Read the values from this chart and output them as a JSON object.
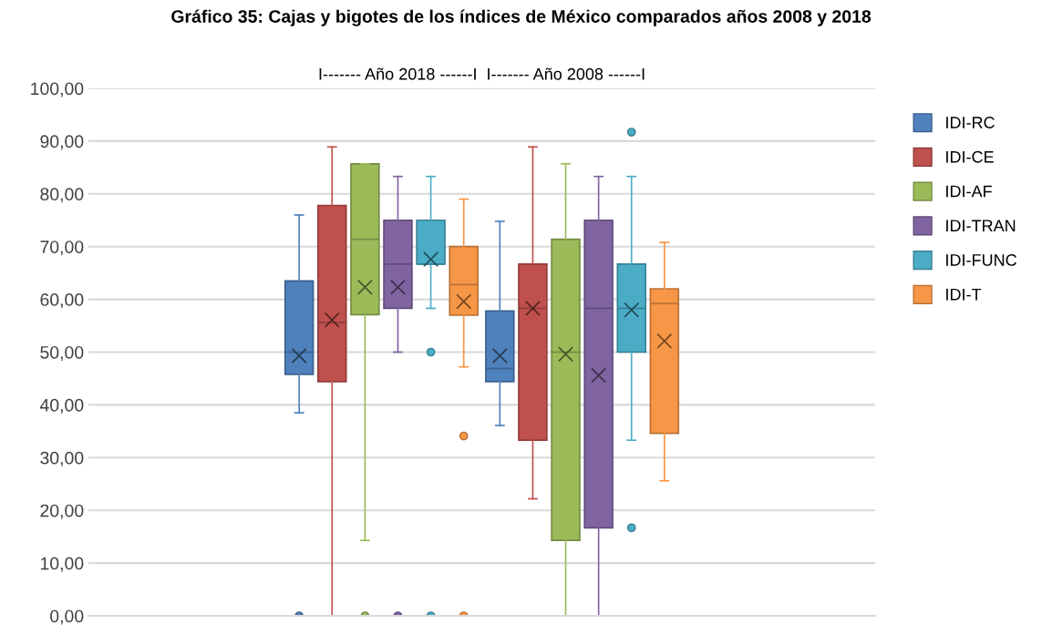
{
  "chart_data": {
    "type": "box",
    "title": "Gráfico 35: Cajas y bigotes de los índices de México comparados años 2008 y 2018",
    "annotations": [
      "I------- Año 2018 ------I  I------- Año 2008 ------I"
    ],
    "categories": [
      null,
      null
    ],
    "series": [
      {
        "name": "IDI-RC",
        "color": "#4f81bd",
        "boxes": [
          {
            "low": 38.5,
            "q1": 45.8,
            "median": 50.0,
            "q3": 63.5,
            "high": 76.0,
            "mean": 49.3,
            "outliers": [
              0
            ]
          },
          {
            "low": 36.1,
            "q1": 44.4,
            "median": 46.9,
            "q3": 57.8,
            "high": 74.8,
            "mean": 49.3
          }
        ]
      },
      {
        "name": "IDI-CE",
        "color": "#c0504d",
        "boxes": [
          {
            "low": 0,
            "q1": 44.4,
            "median": 55.6,
            "q3": 77.8,
            "high": 88.9,
            "mean": 56.1
          },
          {
            "low": 22.2,
            "q1": 33.3,
            "median": 58.3,
            "q3": 66.7,
            "high": 88.9,
            "mean": 58.3
          }
        ]
      },
      {
        "name": "IDI-AF",
        "color": "#9bbb59",
        "boxes": [
          {
            "low": 14.3,
            "q1": 57.1,
            "median": 71.4,
            "q3": 85.7,
            "high": 85.7,
            "mean": 62.3,
            "outliers": [
              0
            ]
          },
          {
            "low": 0,
            "q1": 14.3,
            "median": 50.0,
            "q3": 71.4,
            "high": 85.7,
            "mean": 49.6
          }
        ]
      },
      {
        "name": "IDI-TRAN",
        "color": "#8064a2",
        "boxes": [
          {
            "low": 50.0,
            "q1": 58.3,
            "median": 66.7,
            "q3": 75.0,
            "high": 83.3,
            "mean": 62.3,
            "outliers": [
              0
            ]
          },
          {
            "low": 0,
            "q1": 16.7,
            "median": 58.3,
            "q3": 75.0,
            "high": 83.3,
            "mean": 45.6
          }
        ]
      },
      {
        "name": "IDI-FUNC",
        "color": "#4bacc6",
        "boxes": [
          {
            "low": 58.3,
            "q1": 66.7,
            "median": 66.7,
            "q3": 75.0,
            "high": 83.3,
            "mean": 67.6,
            "outliers": [
              50.0,
              0
            ]
          },
          {
            "low": 33.3,
            "q1": 50.0,
            "median": 58.3,
            "q3": 66.7,
            "high": 83.3,
            "mean": 58.0,
            "outliers": [
              91.7,
              16.7
            ]
          }
        ]
      },
      {
        "name": "IDI-T",
        "color": "#f79646",
        "boxes": [
          {
            "low": 47.2,
            "q1": 57.0,
            "median": 62.8,
            "q3": 70.0,
            "high": 79.0,
            "mean": 59.6,
            "outliers": [
              34.1,
              0
            ]
          },
          {
            "low": 25.6,
            "q1": 34.6,
            "median": 59.2,
            "q3": 62.0,
            "high": 70.8,
            "mean": 52.1
          }
        ]
      }
    ],
    "ylim": [
      0,
      100
    ],
    "yticks": [
      {
        "value": 0,
        "label": "0,00"
      },
      {
        "value": 10,
        "label": "10,00"
      },
      {
        "value": 20,
        "label": "20,00"
      },
      {
        "value": 30,
        "label": "30,00"
      },
      {
        "value": 40,
        "label": "40,00"
      },
      {
        "value": 50,
        "label": "50,00"
      },
      {
        "value": 60,
        "label": "60,00"
      },
      {
        "value": 70,
        "label": "70,00"
      },
      {
        "value": 80,
        "label": "80,00"
      },
      {
        "value": 90,
        "label": "90,00"
      },
      {
        "value": 100,
        "label": "100,00"
      }
    ],
    "grid": "y",
    "legend": "right"
  }
}
